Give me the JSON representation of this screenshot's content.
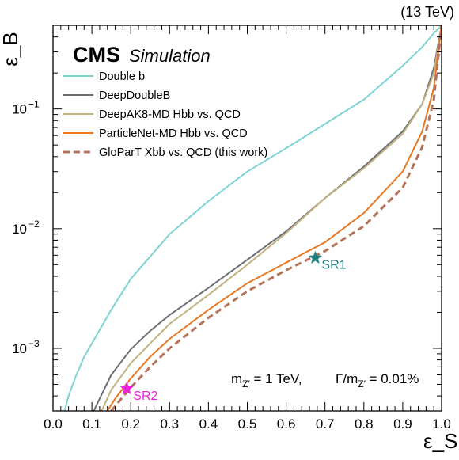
{
  "chart_data": {
    "type": "line",
    "title": "",
    "experiment": "CMS",
    "subtitle": "Simulation",
    "energy_label": "(13 TeV)",
    "xlabel": "ε_S",
    "ylabel": "ε_B",
    "xlim": [
      0.0,
      1.0
    ],
    "ylim": [
      0.0003,
      0.5
    ],
    "yscale": "log",
    "xticks": [
      "0.0",
      "0.1",
      "0.2",
      "0.3",
      "0.4",
      "0.5",
      "0.6",
      "0.7",
      "0.8",
      "0.9",
      "1.0"
    ],
    "yticks": [
      {
        "value": 0.001,
        "base": "10",
        "exp": "−3"
      },
      {
        "value": 0.01,
        "base": "10",
        "exp": "−2"
      },
      {
        "value": 0.1,
        "base": "10",
        "exp": "−1"
      }
    ],
    "legend_position": "top-left",
    "annotation": {
      "left_main": "m",
      "left_sub": "Z′",
      "left_val": " = 1 TeV,",
      "right_main": "Γ/m",
      "right_sub": "Z′",
      "right_val": " = 0.01%"
    },
    "series": [
      {
        "name": "Double b",
        "color": "#7fd3d3",
        "dash": "none",
        "x": [
          0.03,
          0.04,
          0.06,
          0.08,
          0.1,
          0.15,
          0.2,
          0.3,
          0.4,
          0.5,
          0.6,
          0.7,
          0.8,
          0.9,
          0.95,
          0.98,
          1.0
        ],
        "y": [
          0.0003,
          0.0004,
          0.0006,
          0.00085,
          0.0011,
          0.0021,
          0.0038,
          0.009,
          0.017,
          0.03,
          0.047,
          0.075,
          0.12,
          0.23,
          0.33,
          0.43,
          0.5
        ]
      },
      {
        "name": "DeepDoubleB",
        "color": "#6e6e78",
        "dash": "none",
        "x": [
          0.105,
          0.12,
          0.15,
          0.2,
          0.25,
          0.3,
          0.4,
          0.5,
          0.6,
          0.7,
          0.8,
          0.9,
          0.95,
          0.98,
          1.0
        ],
        "y": [
          0.0003,
          0.00038,
          0.0006,
          0.00098,
          0.0014,
          0.0019,
          0.0032,
          0.0055,
          0.0095,
          0.018,
          0.033,
          0.065,
          0.11,
          0.22,
          0.5
        ]
      },
      {
        "name": "DeepAK8-MD Hbb vs. QCD",
        "color": "#c2b280",
        "dash": "none",
        "x": [
          0.125,
          0.15,
          0.2,
          0.25,
          0.3,
          0.4,
          0.5,
          0.6,
          0.7,
          0.8,
          0.9,
          0.95,
          0.98,
          1.0
        ],
        "y": [
          0.0003,
          0.00045,
          0.00075,
          0.0011,
          0.0016,
          0.0028,
          0.005,
          0.0092,
          0.018,
          0.032,
          0.062,
          0.11,
          0.2,
          0.5
        ]
      },
      {
        "name": "ParticleNet-MD Hbb vs. QCD",
        "color": "#e87722",
        "dash": "none",
        "x": [
          0.14,
          0.16,
          0.2,
          0.25,
          0.3,
          0.4,
          0.5,
          0.6,
          0.7,
          0.8,
          0.9,
          0.95,
          0.98,
          1.0
        ],
        "y": [
          0.0003,
          0.00038,
          0.00056,
          0.00085,
          0.0012,
          0.0021,
          0.0035,
          0.0052,
          0.0077,
          0.0135,
          0.03,
          0.065,
          0.15,
          0.5
        ]
      },
      {
        "name": "GloParT Xbb vs. QCD (this work)",
        "color": "#b5735a",
        "dash": "8,5",
        "x": [
          0.15,
          0.17,
          0.2,
          0.25,
          0.3,
          0.4,
          0.5,
          0.6,
          0.7,
          0.8,
          0.9,
          0.95,
          0.98,
          1.0
        ],
        "y": [
          0.0003,
          0.00036,
          0.00047,
          0.0007,
          0.001,
          0.0018,
          0.003,
          0.0045,
          0.0065,
          0.0105,
          0.022,
          0.048,
          0.12,
          0.5
        ]
      }
    ],
    "working_points": [
      {
        "label": "SR1",
        "x": 0.675,
        "y": 0.0057,
        "color": "#1a8080"
      },
      {
        "label": "SR2",
        "x": 0.19,
        "y": 0.00046,
        "color": "#ee22dd"
      }
    ]
  }
}
